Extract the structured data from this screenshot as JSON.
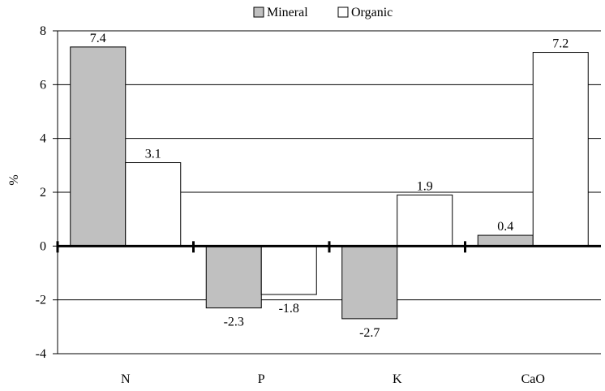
{
  "chart_data": {
    "type": "bar",
    "categories": [
      "N",
      "P",
      "K",
      "CaO"
    ],
    "series": [
      {
        "name": "Mineral",
        "values": [
          7.4,
          -2.3,
          -2.7,
          0.4
        ],
        "color": "#c0c0c0"
      },
      {
        "name": "Organic",
        "values": [
          3.1,
          -1.8,
          1.9,
          7.2
        ],
        "color": "#ffffff"
      }
    ],
    "data_labels": [
      [
        "7.4",
        "-2.3",
        "-2.7",
        "0.4"
      ],
      [
        "3.1",
        "-1.8",
        "1.9",
        "7.2"
      ]
    ],
    "ylabel": "%",
    "xlabel": "",
    "title": "",
    "ylim": [
      -4,
      8
    ],
    "yticks": [
      -4,
      -2,
      0,
      2,
      4,
      6,
      8
    ],
    "ytick_labels": [
      "-4",
      "-2",
      "0",
      "2",
      "4",
      "6",
      "8"
    ],
    "grid": true,
    "legend_position": "top-center"
  },
  "colors": {
    "axis": "#000000",
    "grid": "#000000",
    "bar_stroke": "#000000"
  }
}
